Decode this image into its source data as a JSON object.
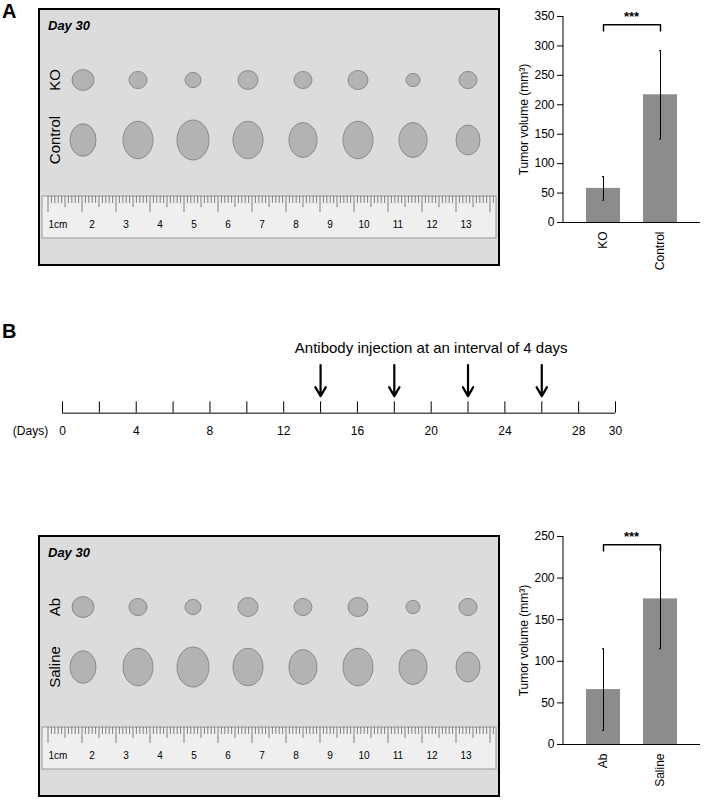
{
  "chart_data": [
    {
      "type": "bar",
      "categories": [
        "KO",
        "Control"
      ],
      "values": [
        58,
        217
      ],
      "errors": [
        20,
        75
      ],
      "ylabel": "Tumor volume (mm³)",
      "ylim": [
        0,
        350
      ],
      "yticks": [
        0,
        50,
        100,
        150,
        200,
        250,
        300,
        350
      ],
      "color": "#8c8c8c",
      "annotation": "***"
    },
    {
      "type": "bar",
      "categories": [
        "Ab",
        "Saline"
      ],
      "values": [
        66,
        175
      ],
      "errors": [
        49,
        60
      ],
      "ylabel": "Tumor volume (mm³)",
      "ylim": [
        0,
        250
      ],
      "yticks": [
        0,
        50,
        100,
        150,
        200,
        250
      ],
      "color": "#8c8c8c",
      "annotation": "***"
    }
  ],
  "panels": [
    {
      "label": "A",
      "photo": {
        "day": "Day 30",
        "rows": [
          "KO",
          "Control"
        ],
        "ruler": [
          "1cm",
          "2",
          "3",
          "4",
          "5",
          "6",
          "7",
          "8",
          "9",
          "10",
          "11",
          "12",
          "13"
        ]
      }
    },
    {
      "label": "B",
      "photo": {
        "day": "Day 30",
        "rows": [
          "Ab",
          "Saline"
        ],
        "ruler": [
          "1cm",
          "2",
          "3",
          "4",
          "5",
          "6",
          "7",
          "8",
          "9",
          "10",
          "11",
          "12",
          "13"
        ]
      },
      "timeline": {
        "title": "Antibody injection at an interval of 4 days",
        "xlabel": "(Days)",
        "xlim": [
          0,
          30
        ],
        "xticks": [
          0,
          4,
          8,
          12,
          16,
          20,
          24,
          28,
          30
        ],
        "minor_xticks": [
          2,
          6,
          10,
          14,
          18,
          22,
          26
        ],
        "injections": [
          14,
          18,
          22,
          26
        ]
      }
    }
  ]
}
